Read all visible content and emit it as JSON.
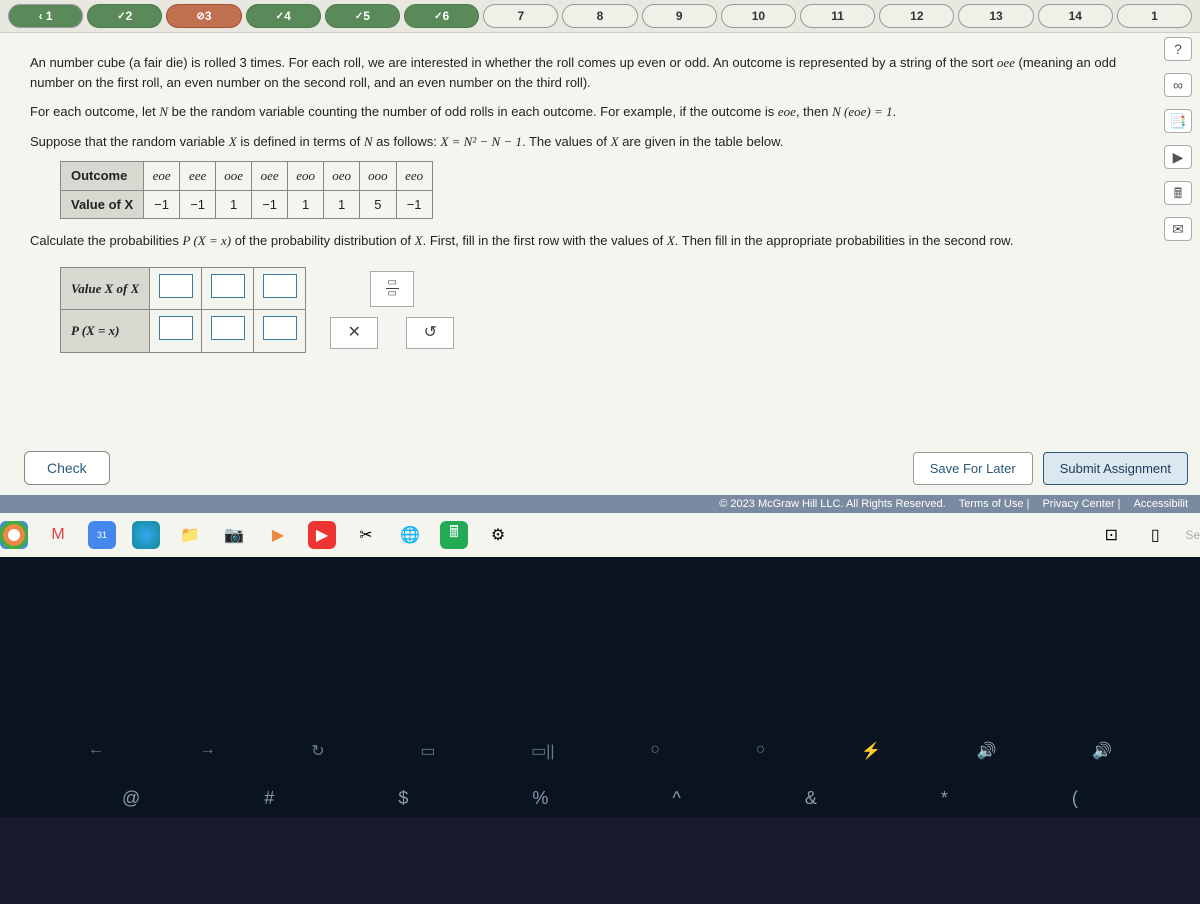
{
  "nav": {
    "pills": [
      {
        "label": "1",
        "status": "back"
      },
      {
        "label": "2",
        "status": "done",
        "check": true
      },
      {
        "label": "3",
        "status": "active",
        "block": true
      },
      {
        "label": "4",
        "status": "done",
        "check": true
      },
      {
        "label": "5",
        "status": "done",
        "check": true
      },
      {
        "label": "6",
        "status": "done",
        "check": true
      },
      {
        "label": "7",
        "status": "pending"
      },
      {
        "label": "8",
        "status": "pending"
      },
      {
        "label": "9",
        "status": "pending"
      },
      {
        "label": "10",
        "status": "pending"
      },
      {
        "label": "11",
        "status": "pending"
      },
      {
        "label": "12",
        "status": "pending"
      },
      {
        "label": "13",
        "status": "pending"
      },
      {
        "label": "14",
        "status": "pending"
      },
      {
        "label": "1",
        "status": "pending"
      }
    ]
  },
  "sideTools": [
    "?",
    "∞",
    "📑",
    "▶",
    "🖩",
    "✉"
  ],
  "problem": {
    "p1a": "An number cube (a fair die) is rolled 3 times. For each roll, we are interested in whether the roll comes up even or odd. An outcome is represented by a string of the sort ",
    "p1b": " (meaning an odd number on the first roll, an even number on the second roll, and an even number on the third roll).",
    "p1oee": "oee",
    "p2a": "For each outcome, let ",
    "p2N": "N",
    "p2b": " be the random variable counting the number of odd rolls in each outcome. For example, if the outcome is ",
    "p2eoe": "eoe",
    "p2c": ", then ",
    "p2eq": "N (eoe) = 1",
    "p2d": ".",
    "p3a": "Suppose that the random variable ",
    "p3X": "X",
    "p3b": " is defined in terms of ",
    "p3N2": "N",
    "p3c": " as follows: ",
    "p3eq": "X = N² − N − 1",
    "p3d": ". The values of ",
    "p3X2": "X",
    "p3e": " are given in the table below.",
    "p4a": "Calculate the probabilities ",
    "p4px": "P (X = x)",
    "p4b": " of the probability distribution of ",
    "p4X": "X",
    "p4c": ". First, fill in the first row with the values of ",
    "p4X2": "X",
    "p4d": ". Then fill in the appropriate probabilities in the second row."
  },
  "outcomeTable": {
    "headOutcome": "Outcome",
    "headValue": "Value of X",
    "outcomes": [
      "eoe",
      "eee",
      "ooe",
      "oee",
      "eoo",
      "oeo",
      "ooo",
      "eeo"
    ],
    "values": [
      "−1",
      "−1",
      "1",
      "−1",
      "1",
      "1",
      "5",
      "−1"
    ]
  },
  "answerTable": {
    "row1": "Value X of X",
    "row2": "P (X = x)"
  },
  "tools": {
    "frac": "▭/▭",
    "close": "✕",
    "reset": "↺"
  },
  "buttons": {
    "check": "Check",
    "save": "Save For Later",
    "submit": "Submit Assignment"
  },
  "footer": {
    "copyright": "© 2023 McGraw Hill LLC. All Rights Reserved.",
    "terms": "Terms of Use",
    "privacy": "Privacy Center",
    "access": "Accessibilit"
  },
  "taskbar": {
    "right": "Se"
  },
  "keyboard": {
    "fn": [
      "←",
      "→",
      "↻",
      "▭",
      "▭||",
      "○",
      "○",
      "⚡",
      "🔊",
      "🔊"
    ],
    "sym": [
      "@",
      "#",
      "$",
      "%",
      "^",
      "&",
      "*",
      "("
    ]
  },
  "colors": {
    "done": "#5a8a5a",
    "active": "#c07050",
    "pending": "#f0f0e8",
    "pageBg": "#f5f5f0",
    "tableHeader": "#d8d8d0",
    "footerBar": "#7a8aa0",
    "darkLower": "#0a1420",
    "accent": "#2a5a7a"
  }
}
